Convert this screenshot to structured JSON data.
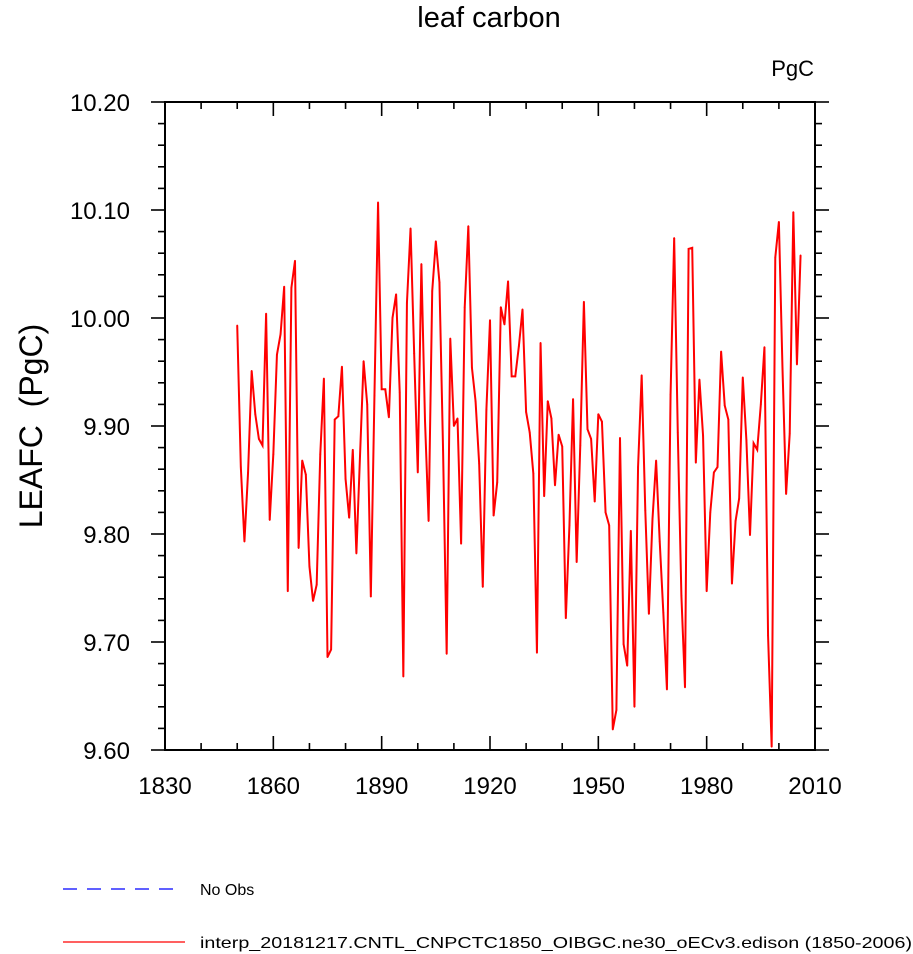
{
  "chart_data": {
    "type": "line",
    "title": "leaf carbon",
    "units_label": "PgC",
    "ylabel": "LEAFC  (PgC)",
    "xlabel": "",
    "xlim": [
      1830,
      2010
    ],
    "ylim": [
      9.6,
      10.2
    ],
    "x_major_ticks": [
      1830,
      1860,
      1890,
      1920,
      1950,
      1980,
      2010
    ],
    "x_tick_labels": [
      "1830",
      "1860",
      "1890",
      "1920",
      "1950",
      "1980",
      "2010"
    ],
    "y_major_ticks": [
      9.6,
      9.7,
      9.8,
      9.9,
      10.0,
      10.1,
      10.2
    ],
    "y_tick_labels": [
      "9.60",
      "9.70",
      "9.80",
      "9.90",
      "10.00",
      "10.10",
      "10.20"
    ],
    "grid": false,
    "legend_position": "bottom-left",
    "legend": [
      {
        "label": "No Obs",
        "style": "dashed",
        "color": "#0000ff"
      },
      {
        "label": "interp_20181217.CNTL_CNPCTC1850_OIBGC.ne30_oECv3.edison (1850-2006)",
        "style": "solid",
        "color": "#ff0000"
      }
    ],
    "series": [
      {
        "name": "interp_20181217.CNTL_CNPCTC1850_OIBGC.ne30_oECv3.edison (1850-2006)",
        "color": "#ff0000",
        "x_start": 1850,
        "x_step": 1,
        "values": [
          9.993,
          9.862,
          9.793,
          9.857,
          9.951,
          9.911,
          9.888,
          9.882,
          10.004,
          9.813,
          9.874,
          9.966,
          9.985,
          10.029,
          9.747,
          10.028,
          10.053,
          9.787,
          9.868,
          9.855,
          9.77,
          9.738,
          9.753,
          9.874,
          9.944,
          9.686,
          9.693,
          9.906,
          9.909,
          9.955,
          9.851,
          9.815,
          9.878,
          9.782,
          9.872,
          9.96,
          9.92,
          9.742,
          9.928,
          10.107,
          9.934,
          9.934,
          9.908,
          10.0,
          10.022,
          9.931,
          9.668,
          10.014,
          10.083,
          9.967,
          9.857,
          10.05,
          9.905,
          9.812,
          10.025,
          10.071,
          10.033,
          9.878,
          9.689,
          9.981,
          9.9,
          9.907,
          9.791,
          10.01,
          10.085,
          9.954,
          9.923,
          9.865,
          9.751,
          9.915,
          9.998,
          9.817,
          9.848,
          10.01,
          9.994,
          10.034,
          9.946,
          9.946,
          9.974,
          10.008,
          9.913,
          9.894,
          9.856,
          9.69,
          9.977,
          9.835,
          9.923,
          9.907,
          9.845,
          9.892,
          9.881,
          9.722,
          9.808,
          9.925,
          9.774,
          9.882,
          10.015,
          9.897,
          9.888,
          9.83,
          9.911,
          9.904,
          9.82,
          9.808,
          9.619,
          9.637,
          9.889,
          9.698,
          9.678,
          9.803,
          9.64,
          9.862,
          9.947,
          9.822,
          9.726,
          9.814,
          9.868,
          9.793,
          9.727,
          9.656,
          9.929,
          10.074,
          9.894,
          9.743,
          9.658,
          10.064,
          10.065,
          9.866,
          9.943,
          9.891,
          9.747,
          9.82,
          9.857,
          9.862,
          9.969,
          9.919,
          9.906,
          9.754,
          9.812,
          9.833,
          9.945,
          9.887,
          9.799,
          9.884,
          9.878,
          9.92,
          9.973,
          9.706,
          9.603,
          10.056,
          10.089,
          9.953,
          9.837,
          9.893,
          10.098,
          9.957,
          10.058
        ]
      }
    ]
  }
}
